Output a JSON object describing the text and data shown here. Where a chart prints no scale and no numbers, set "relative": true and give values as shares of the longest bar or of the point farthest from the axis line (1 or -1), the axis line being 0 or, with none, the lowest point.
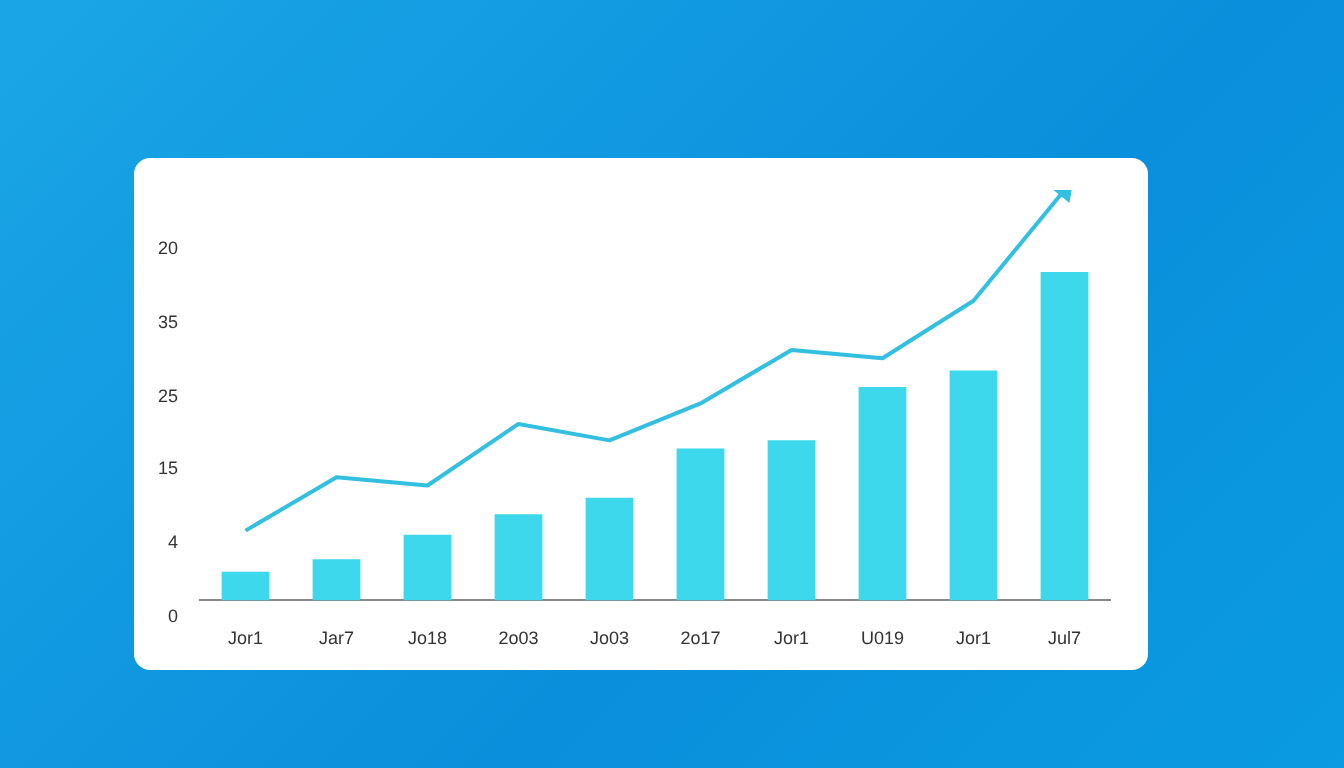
{
  "chart_data": {
    "type": "bar",
    "relative": true,
    "categories": [
      "Jor1",
      "Jar7",
      "Jo18",
      "2o03",
      "Jo03",
      "2o17",
      "Jor1",
      "U019",
      "Jor1",
      "Jul7"
    ],
    "series": [
      {
        "color": "#3dd8eb",
        "values": [
          0.07,
          0.1,
          0.16,
          0.21,
          0.25,
          0.37,
          0.39,
          0.52,
          0.56,
          0.8
        ]
      },
      {
        "type": "line",
        "color": "#33bfe0",
        "values": [
          0.17,
          0.3,
          0.28,
          0.43,
          0.39,
          0.48,
          0.61,
          0.59,
          0.73,
          1
        ]
      }
    ],
    "annotations": [
      "20",
      "35",
      "25",
      "15",
      "4",
      "0"
    ],
    "legend": false,
    "line_style": "solid"
  }
}
